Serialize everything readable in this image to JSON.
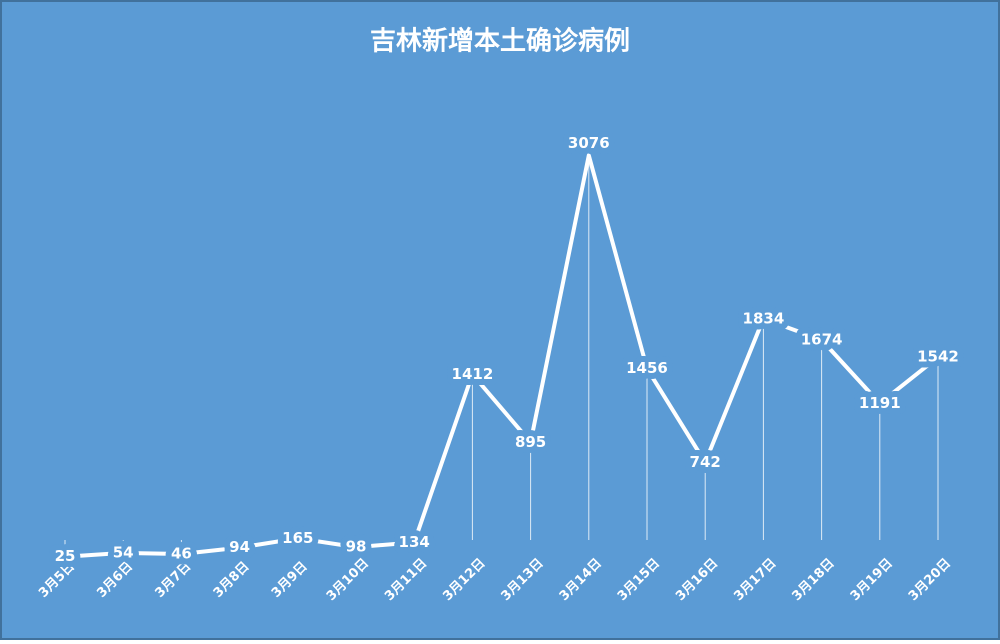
{
  "chart_data": {
    "type": "line",
    "title": "吉林新增本土确诊病例",
    "categories": [
      "3月5日",
      "3月6日",
      "3月7日",
      "3月8日",
      "3月9日",
      "3月10日",
      "3月11日",
      "3月12日",
      "3月13日",
      "3月14日",
      "3月15日",
      "3月16日",
      "3月17日",
      "3月18日",
      "3月19日",
      "3月20日"
    ],
    "values": [
      25,
      54,
      46,
      94,
      165,
      98,
      134,
      1412,
      895,
      3076,
      1456,
      742,
      1834,
      1674,
      1191,
      1542
    ],
    "color": "#ffffff",
    "background": "#5b9bd5",
    "ylim": [
      0,
      3300
    ]
  }
}
